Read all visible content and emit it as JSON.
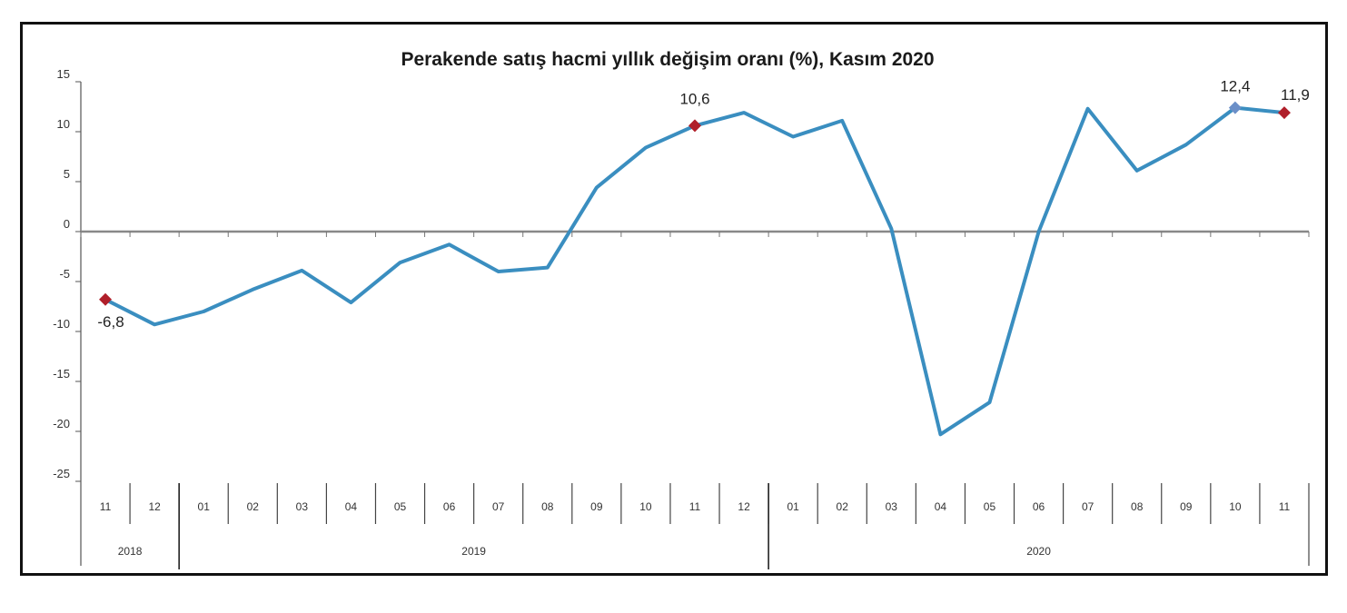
{
  "chart_data": {
    "type": "line",
    "title": "Perakende satış hacmi yıllık değişim oranı (%), Kasım 2020",
    "xlabel": "",
    "ylabel": "",
    "ylim": [
      -25,
      15
    ],
    "yticks": [
      15,
      10,
      5,
      0,
      -5,
      -10,
      -15,
      -20,
      -25
    ],
    "grid": false,
    "categories": [
      "11",
      "12",
      "01",
      "02",
      "03",
      "04",
      "05",
      "06",
      "07",
      "08",
      "09",
      "10",
      "11",
      "12",
      "01",
      "02",
      "03",
      "04",
      "05",
      "06",
      "07",
      "08",
      "09",
      "10",
      "11"
    ],
    "years": [
      {
        "label": "2018",
        "from": 0,
        "to": 1
      },
      {
        "label": "2019",
        "from": 2,
        "to": 13
      },
      {
        "label": "2020",
        "from": 14,
        "to": 24
      }
    ],
    "series": [
      {
        "values": [
          -6.8,
          -9.3,
          -8.0,
          -5.8,
          -3.9,
          -7.1,
          -3.1,
          -1.3,
          -4.0,
          -3.6,
          4.4,
          8.4,
          10.6,
          11.9,
          9.5,
          11.1,
          0.3,
          -20.3,
          -17.1,
          0.0,
          12.3,
          6.1,
          8.7,
          12.4,
          11.9
        ],
        "color": "#3a8ec0"
      }
    ],
    "highlighted_points": [
      {
        "index": 0,
        "label": "-6,8",
        "color": "#b01f2a"
      },
      {
        "index": 12,
        "label": "10,6",
        "color": "#b01f2a"
      },
      {
        "index": 23,
        "label": "12,4",
        "color": "#6b8fc8"
      },
      {
        "index": 24,
        "label": "11,9",
        "color": "#b01f2a"
      }
    ]
  }
}
